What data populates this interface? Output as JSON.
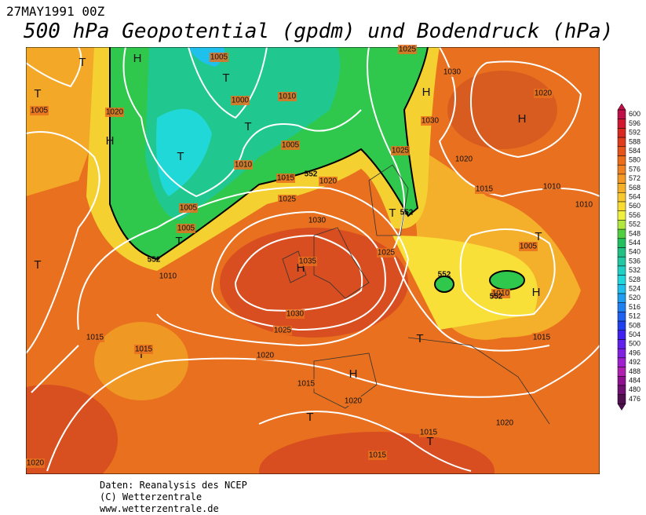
{
  "header": {
    "date": "27MAY1991 00Z",
    "title": "500 hPa Geopotential (gpdm) und Bodendruck (hPa)"
  },
  "footer": [
    "Daten: Reanalysis des NCEP",
    "(C) Wetterzentrale",
    "www.wetterzentrale.de"
  ],
  "legend": {
    "levels": [
      600,
      596,
      592,
      588,
      584,
      580,
      576,
      572,
      568,
      564,
      560,
      556,
      552,
      548,
      544,
      540,
      536,
      532,
      528,
      524,
      520,
      516,
      512,
      508,
      504,
      500,
      496,
      492,
      488,
      484,
      480,
      476
    ],
    "colors": [
      "#c0104a",
      "#d01830",
      "#d82820",
      "#e03c1c",
      "#e65418",
      "#ec6c18",
      "#f08020",
      "#f49a24",
      "#f6b028",
      "#f8c830",
      "#f8dc30",
      "#f0f040",
      "#b0e840",
      "#50d040",
      "#20c060",
      "#20c084",
      "#20c8a4",
      "#20d0c4",
      "#20d8dc",
      "#20c0ec",
      "#209cf0",
      "#2080f0",
      "#2060f0",
      "#2040f0",
      "#4020f0",
      "#6020ec",
      "#8020e0",
      "#a020d0",
      "#b020b0",
      "#901090",
      "#701070",
      "#501050"
    ]
  },
  "map": {
    "centers": [
      "H",
      "T",
      "T",
      "H",
      "T",
      "T",
      "T",
      "T",
      "T",
      "H",
      "T",
      "H",
      "T",
      "T",
      "H",
      "H",
      "T",
      "T",
      "H",
      "T"
    ],
    "isobars": [
      "1005",
      "1000",
      "1010",
      "1005",
      "1010",
      "1015",
      "1020",
      "1025",
      "1030",
      "1035",
      "1030",
      "1025",
      "1020",
      "1015",
      "1015",
      "1010",
      "1005",
      "1005",
      "1020",
      "1005",
      "1030",
      "1020",
      "1030",
      "1025",
      "1020",
      "1015",
      "1010",
      "1010",
      "1025",
      "1005",
      "1010",
      "1015",
      "1015",
      "1020",
      "1020",
      "1015",
      "1015",
      "1020",
      "1025"
    ],
    "heights": [
      "552",
      "552",
      "552",
      "552",
      "552"
    ]
  }
}
